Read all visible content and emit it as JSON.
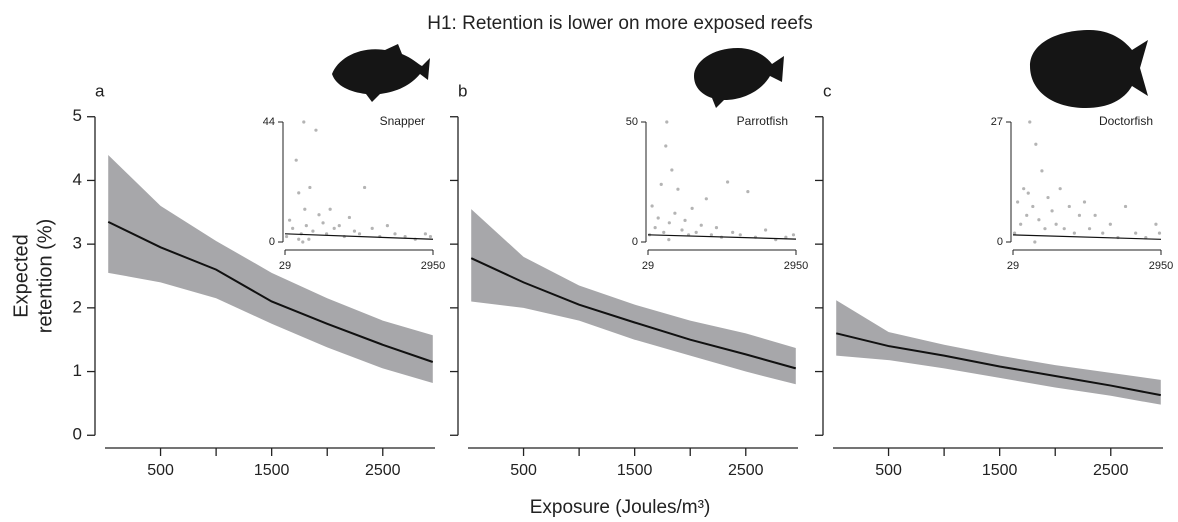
{
  "title": "H1: Retention is lower on more exposed reefs",
  "x_label": "Exposure (Joules/m³)",
  "y_label": [
    "Expected",
    "retention (%)"
  ],
  "chart_data": [
    {
      "type": "line",
      "panel_label": "a",
      "color": "#111111",
      "band_color": "#a7a7aa",
      "x": [
        29,
        500,
        1000,
        1500,
        2000,
        2500,
        2950
      ],
      "values": [
        3.35,
        2.95,
        2.6,
        2.1,
        1.75,
        1.42,
        1.15
      ],
      "upper": [
        4.4,
        3.6,
        3.05,
        2.55,
        2.15,
        1.8,
        1.57
      ],
      "lower": [
        2.55,
        2.4,
        2.15,
        1.75,
        1.38,
        1.05,
        0.82
      ],
      "xlim": [
        0,
        2970
      ],
      "ylim": [
        -0.2,
        5.2
      ],
      "xticks": [
        500,
        1500,
        2500
      ],
      "xminor_ticks": [
        1000,
        2000
      ],
      "yticks": [
        0,
        1,
        2,
        3,
        4,
        5
      ],
      "inset": {
        "type": "scatter",
        "title": "Snapper",
        "color": "#b4b4b4",
        "line_color": "#111111",
        "x": [
          60,
          120,
          180,
          250,
          300,
          350,
          400,
          450,
          520,
          580,
          640,
          700,
          780,
          850,
          920,
          1000,
          1100,
          1200,
          1300,
          1400,
          1500,
          1600,
          1750,
          1900,
          2050,
          2200,
          2400,
          2600,
          2800,
          2900,
          420,
          380,
          300,
          500
        ],
        "values": [
          2,
          8,
          5,
          30,
          18,
          3,
          44,
          6,
          20,
          4,
          41,
          10,
          7,
          3,
          12,
          5,
          6,
          2,
          9,
          4,
          3,
          20,
          5,
          2,
          6,
          3,
          2,
          1,
          3,
          2,
          12,
          0,
          1,
          1
        ],
        "fit_x": [
          29,
          2950
        ],
        "fit_values": [
          3,
          1
        ],
        "xlim": [
          29,
          2950
        ],
        "ylim": [
          0,
          44
        ],
        "xticks": [
          29,
          2950
        ],
        "yticks": [
          0,
          44
        ]
      }
    },
    {
      "type": "line",
      "panel_label": "b",
      "color": "#111111",
      "band_color": "#a7a7aa",
      "x": [
        29,
        500,
        1000,
        1500,
        2000,
        2500,
        2950
      ],
      "values": [
        2.78,
        2.4,
        2.05,
        1.77,
        1.5,
        1.27,
        1.05
      ],
      "upper": [
        3.55,
        2.8,
        2.35,
        2.05,
        1.8,
        1.6,
        1.37
      ],
      "lower": [
        2.1,
        2.0,
        1.8,
        1.5,
        1.25,
        1.0,
        0.8
      ],
      "xlim": [
        0,
        2970
      ],
      "ylim": [
        -0.2,
        5.2
      ],
      "xticks": [
        500,
        1500,
        2500
      ],
      "xminor_ticks": [
        1000,
        2000
      ],
      "ytick_marks": [
        0,
        1,
        2,
        3,
        4,
        5
      ],
      "inset": {
        "type": "scatter",
        "title": "Parrotfish",
        "color": "#b4b4b4",
        "line_color": "#111111",
        "x": [
          60,
          110,
          170,
          230,
          290,
          340,
          400,
          450,
          500,
          560,
          620,
          700,
          760,
          830,
          900,
          980,
          1080,
          1180,
          1280,
          1380,
          1480,
          1600,
          1700,
          1850,
          2000,
          2150,
          2350,
          2550,
          2750,
          2900,
          380,
          440
        ],
        "values": [
          3,
          15,
          6,
          10,
          24,
          4,
          50,
          8,
          30,
          12,
          22,
          5,
          9,
          3,
          14,
          4,
          7,
          18,
          3,
          6,
          2,
          25,
          4,
          3,
          21,
          2,
          5,
          1,
          2,
          3,
          40,
          1
        ],
        "fit_x": [
          29,
          2950
        ],
        "fit_values": [
          3,
          1.2
        ],
        "xlim": [
          29,
          2950
        ],
        "ylim": [
          0,
          50
        ],
        "xticks": [
          29,
          2950
        ],
        "yticks": [
          0,
          50
        ]
      }
    },
    {
      "type": "line",
      "panel_label": "c",
      "color": "#111111",
      "band_color": "#a7a7aa",
      "x": [
        29,
        500,
        1000,
        1500,
        2000,
        2500,
        2950
      ],
      "values": [
        1.6,
        1.4,
        1.25,
        1.08,
        0.93,
        0.78,
        0.63
      ],
      "upper": [
        2.12,
        1.62,
        1.42,
        1.25,
        1.1,
        0.98,
        0.87
      ],
      "lower": [
        1.25,
        1.18,
        1.05,
        0.9,
        0.75,
        0.62,
        0.48
      ],
      "xlim": [
        0,
        2970
      ],
      "ylim": [
        -0.2,
        5.2
      ],
      "xticks": [
        500,
        1500,
        2500
      ],
      "xminor_ticks": [
        1000,
        2000
      ],
      "ytick_marks": [
        0,
        1,
        2,
        3,
        4,
        5
      ],
      "inset": {
        "type": "scatter",
        "title": "Doctorfish",
        "color": "#b4b4b4",
        "line_color": "#111111",
        "x": [
          60,
          120,
          180,
          240,
          300,
          360,
          420,
          480,
          540,
          600,
          660,
          720,
          800,
          880,
          960,
          1040,
          1140,
          1240,
          1340,
          1440,
          1540,
          1650,
          1800,
          1950,
          2100,
          2250,
          2450,
          2650,
          2850,
          2920,
          330,
          460
        ],
        "values": [
          2,
          9,
          4,
          12,
          6,
          27,
          8,
          22,
          5,
          16,
          3,
          10,
          7,
          4,
          12,
          3,
          8,
          2,
          6,
          9,
          3,
          6,
          2,
          4,
          1,
          8,
          2,
          1,
          4,
          2,
          11,
          0
        ],
        "fit_x": [
          29,
          2950
        ],
        "fit_values": [
          1.6,
          0.6
        ],
        "xlim": [
          29,
          2950
        ],
        "ylim": [
          0,
          27
        ],
        "xticks": [
          29,
          2950
        ],
        "yticks": [
          0,
          27
        ]
      }
    }
  ]
}
